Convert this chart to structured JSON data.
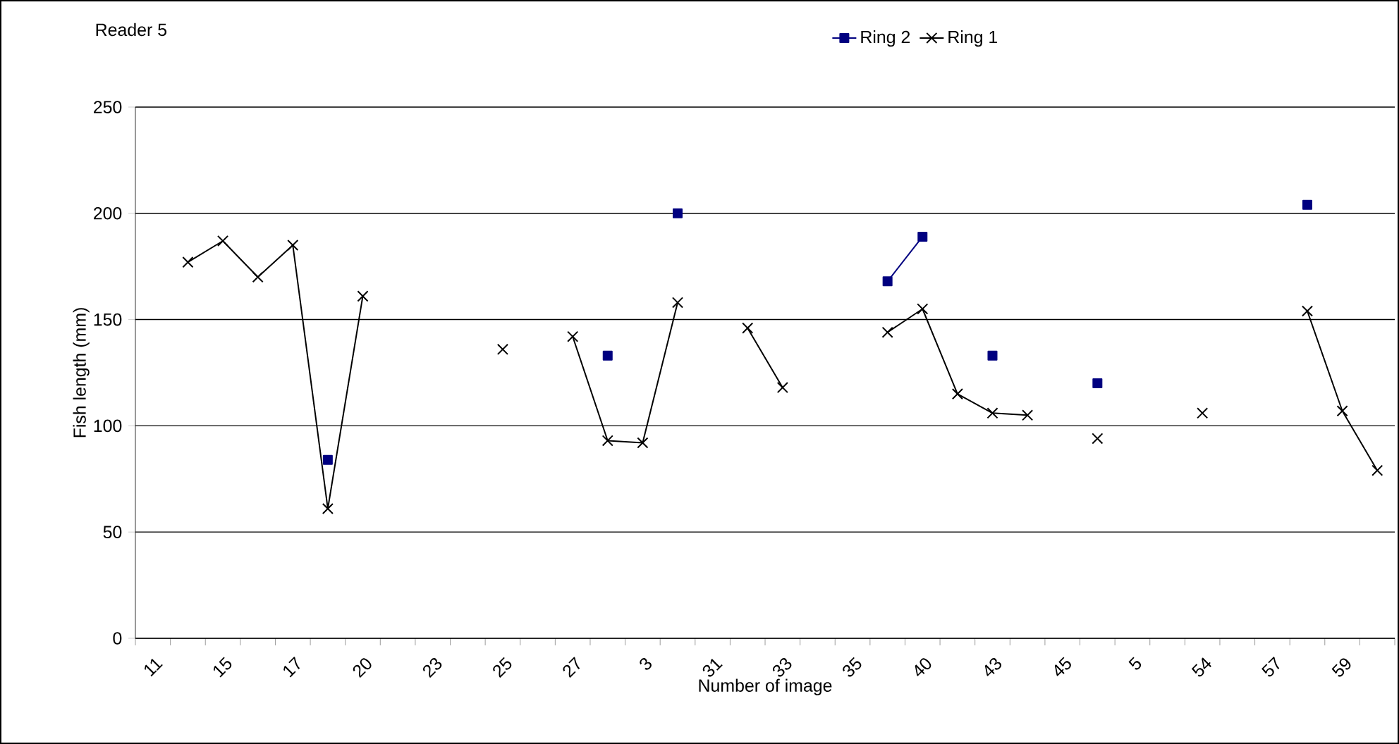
{
  "chart_data": {
    "type": "line",
    "title": "Reader 5",
    "xlabel": "Number of image",
    "ylabel": "Fish length (mm)",
    "categories": [
      "11",
      null,
      "15",
      null,
      "17",
      null,
      "20",
      null,
      "23",
      null,
      "25",
      null,
      "27",
      null,
      "3",
      null,
      "31",
      null,
      "33",
      null,
      "35",
      null,
      "40",
      null,
      "43",
      null,
      "45",
      null,
      "5",
      null,
      "54",
      null,
      "57",
      null,
      "59",
      null
    ],
    "series": [
      {
        "name": "Ring 2",
        "color": "#000080",
        "marker": "square",
        "values": [
          null,
          null,
          null,
          null,
          null,
          84,
          null,
          null,
          null,
          null,
          null,
          null,
          null,
          133,
          null,
          200,
          null,
          null,
          null,
          null,
          null,
          168,
          189,
          null,
          133,
          null,
          null,
          120,
          null,
          null,
          null,
          null,
          null,
          204,
          null,
          null
        ]
      },
      {
        "name": "Ring 1",
        "color": "#000000",
        "marker": "cross",
        "values": [
          null,
          177,
          187,
          170,
          185,
          61,
          161,
          null,
          null,
          null,
          136,
          null,
          142,
          93,
          92,
          158,
          null,
          146,
          118,
          null,
          null,
          144,
          155,
          115,
          106,
          105,
          null,
          94,
          null,
          null,
          106,
          null,
          null,
          154,
          107,
          79
        ]
      }
    ],
    "ylim": [
      0,
      250
    ],
    "yticks": [
      0,
      50,
      100,
      150,
      200,
      250
    ],
    "grid": "y",
    "legend": "top",
    "line_style": "solid"
  }
}
